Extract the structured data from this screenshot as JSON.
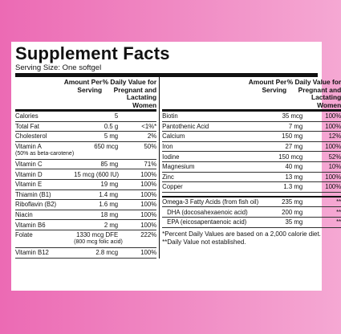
{
  "title": "Supplement Facts",
  "serving_size": "Serving Size: One softgel",
  "headers": {
    "amount": "Amount Per Serving",
    "dv": "% Daily Value for Pregnant and Lactating Women"
  },
  "left_rows": [
    {
      "name": "Calories",
      "amount": "5",
      "dv": ""
    },
    {
      "name": "Total Fat",
      "amount": "0.5 g",
      "dv": "<1%*"
    },
    {
      "name": "Cholesterol",
      "amount": "5 mg",
      "dv": "2%"
    },
    {
      "name": "Vitamin A",
      "sub": "(50% as beta-carotene)",
      "amount": "650 mcg",
      "dv": "50%"
    },
    {
      "name": "Vitamin C",
      "amount": "85 mg",
      "dv": "71%"
    },
    {
      "name": "Vitamin D",
      "amount": "15 mcg (600 IU)",
      "dv": "100%"
    },
    {
      "name": "Vitamin E",
      "amount": "19 mg",
      "dv": "100%"
    },
    {
      "name": "Thiamin (B1)",
      "amount": "1.4 mg",
      "dv": "100%"
    },
    {
      "name": "Riboflavin (B2)",
      "amount": "1.6 mg",
      "dv": "100%"
    },
    {
      "name": "Niacin",
      "amount": "18 mg",
      "dv": "100%"
    },
    {
      "name": "Vitamin B6",
      "amount": "2 mg",
      "dv": "100%"
    },
    {
      "name": "Folate",
      "amount": "1330 mcg DFE",
      "amount2": "(800 mcg folic acid)",
      "dv": "222%"
    },
    {
      "name": "Vitamin B12",
      "amount": "2.8 mcg",
      "dv": "100%"
    }
  ],
  "right_rows": [
    {
      "name": "Biotin",
      "amount": "35 mcg",
      "dv": "100%"
    },
    {
      "name": "Pantothenic Acid",
      "amount": "7 mg",
      "dv": "100%"
    },
    {
      "name": "Calcium",
      "amount": "150 mg",
      "dv": "12%"
    },
    {
      "name": "Iron",
      "amount": "27 mg",
      "dv": "100%"
    },
    {
      "name": "Iodine",
      "amount": "150 mcg",
      "dv": "52%"
    },
    {
      "name": "Magnesium",
      "amount": "40 mg",
      "dv": "10%"
    },
    {
      "name": "Zinc",
      "amount": "13 mg",
      "dv": "100%"
    },
    {
      "name": "Copper",
      "amount": "1.3 mg",
      "dv": "100%"
    }
  ],
  "omega_rows": [
    {
      "name": "Omega-3 Fatty Acids (from fish oil)",
      "amount": "235 mg",
      "dv": "**"
    },
    {
      "name": "DHA (docosahexaenoic acid)",
      "amount": "200 mg",
      "dv": "**"
    },
    {
      "name": "EPA (eicosapentaenoic acid)",
      "amount": "35 mg",
      "dv": "**"
    }
  ],
  "footnotes": [
    "*Percent Daily Values are based on a 2,000 calorie diet.",
    "**Daily Value not established."
  ]
}
